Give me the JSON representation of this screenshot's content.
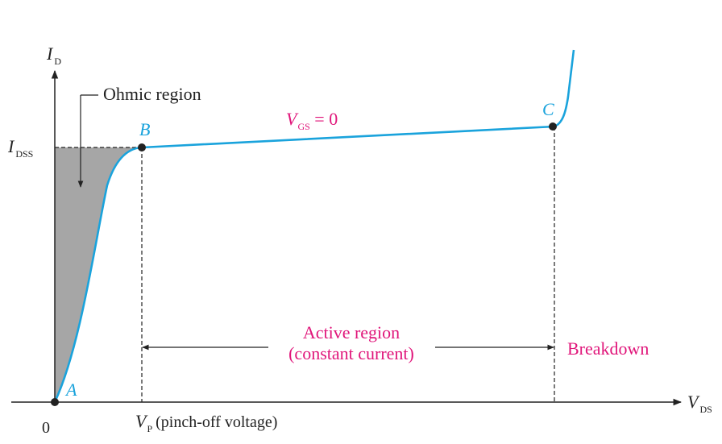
{
  "colors": {
    "curve": "#1aa3dc",
    "annotation": "#e0157a",
    "axis": "#222222",
    "shade": "#a6a6a6",
    "point": "#222222"
  },
  "axes": {
    "y_label_main": "I",
    "y_label_sub": "D",
    "x_label_main": "V",
    "x_label_sub": "DS",
    "origin_label": "0",
    "idss_main": "I",
    "idss_sub": "DSS",
    "vp_main": "V",
    "vp_sub": "P",
    "vp_desc": "(pinch-off voltage)"
  },
  "points": {
    "a": "A",
    "b": "B",
    "c": "C"
  },
  "labels": {
    "ohmic": "Ohmic region",
    "vgs_main": "V",
    "vgs_sub": "GS",
    "vgs_value": " = 0",
    "active_line1": "Active region",
    "active_line2": "(constant current)",
    "breakdown": "Breakdown"
  }
}
